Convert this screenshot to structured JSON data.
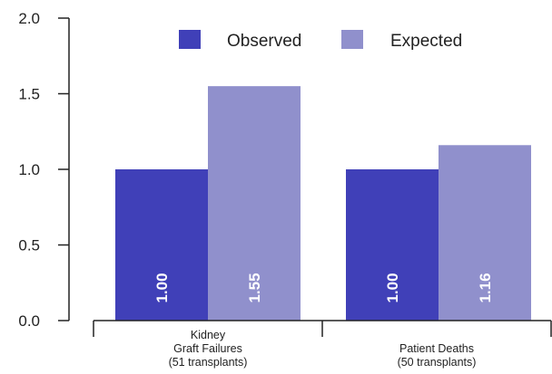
{
  "chart_data": {
    "type": "bar",
    "title": "",
    "xlabel": "",
    "ylabel": "",
    "ylim": [
      0,
      2.0
    ],
    "yticks": [
      "0.0",
      "0.5",
      "1.0",
      "1.5",
      "2.0"
    ],
    "categories": [
      [
        "Kidney",
        "Graft Failures",
        "(51 transplants)"
      ],
      [
        "Patient Deaths",
        "(50 transplants)"
      ]
    ],
    "series": [
      {
        "name": "Observed",
        "color": "#4040b8",
        "values": [
          1.0,
          1.0
        ],
        "labels": [
          "1.00",
          "1.00"
        ]
      },
      {
        "name": "Expected",
        "color": "#9090cc",
        "values": [
          1.55,
          1.16
        ],
        "labels": [
          "1.55",
          "1.16"
        ]
      }
    ],
    "legend": "top-center",
    "grid": false
  }
}
